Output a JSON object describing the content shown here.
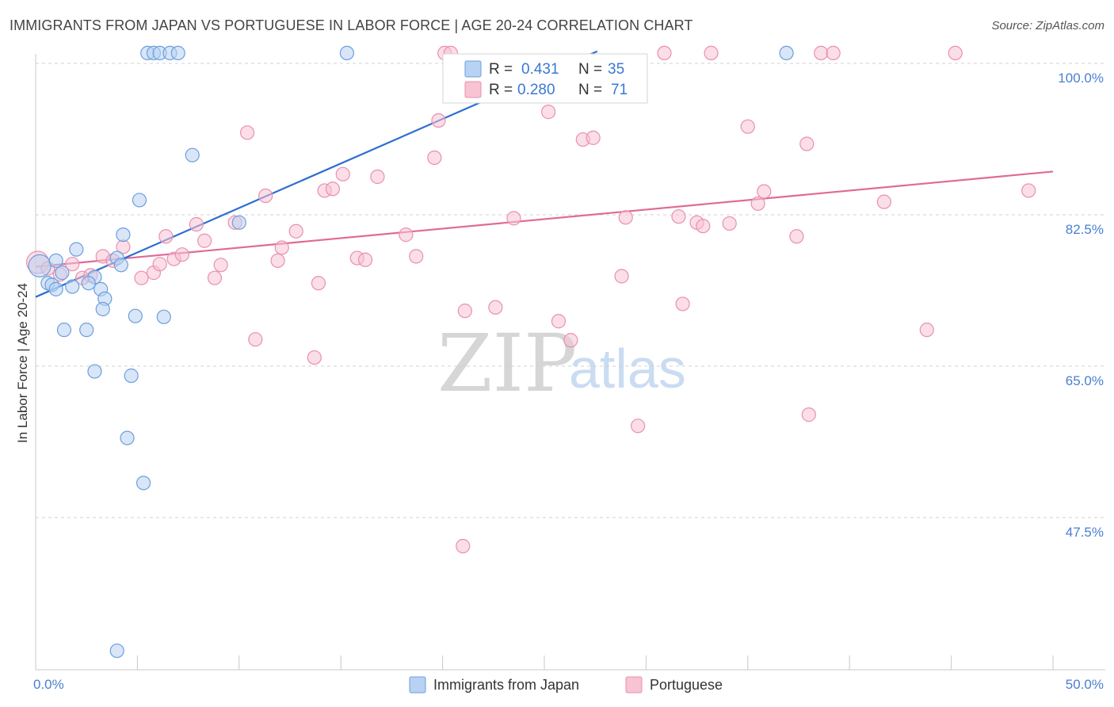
{
  "header": {
    "title": "IMMIGRANTS FROM JAPAN VS PORTUGUESE IN LABOR FORCE | AGE 20-24 CORRELATION CHART",
    "source": "Source: ZipAtlas.com"
  },
  "watermark": {
    "zip": "ZIP",
    "atlas": "atlas"
  },
  "legend": {
    "r_label": "R =",
    "n_label": "N =",
    "japan": {
      "r": "0.431",
      "n": "35"
    },
    "portuguese": {
      "r": "0.280",
      "n": "71"
    }
  },
  "colors": {
    "japan_fill": "#b8d2f3",
    "japan_stroke": "#6c9fdc",
    "japan_line": "#2d6fd0",
    "portuguese_fill": "#f8c3d3",
    "portuguese_stroke": "#e990ad",
    "portuguese_line": "#e06a96",
    "tick_text": "#4a7fd0",
    "grid": "#d0d0d0"
  },
  "chart_data": {
    "type": "scatter",
    "title": "IMMIGRANTS FROM JAPAN VS PORTUGUESE IN LABOR FORCE | AGE 20-24 CORRELATION CHART",
    "xlabel": "",
    "ylabel": "In Labor Force | Age 20-24",
    "xlim": [
      0,
      50
    ],
    "ylim": [
      30,
      102
    ],
    "x_tick_labels": [
      "0.0%",
      "50.0%"
    ],
    "y_ticks": [
      {
        "value": 100.0,
        "label": "100.0%"
      },
      {
        "value": 82.5,
        "label": "82.5%"
      },
      {
        "value": 65.0,
        "label": "65.0%"
      },
      {
        "value": 47.5,
        "label": "47.5%"
      }
    ],
    "legend_position": "top-center",
    "series": [
      {
        "name": "Immigrants from Japan",
        "R": 0.431,
        "N": 35,
        "trend": {
          "x": [
            0,
            27.6
          ],
          "y": [
            73.0,
            101.4
          ]
        },
        "points": [
          {
            "x": 0.2,
            "y": 76.6,
            "big": true
          },
          {
            "x": 0.6,
            "y": 74.6
          },
          {
            "x": 0.8,
            "y": 74.4
          },
          {
            "x": 1.0,
            "y": 73.9
          },
          {
            "x": 1.3,
            "y": 75.8
          },
          {
            "x": 1.4,
            "y": 69.2
          },
          {
            "x": 1.8,
            "y": 74.2
          },
          {
            "x": 2.0,
            "y": 78.5
          },
          {
            "x": 2.5,
            "y": 69.2
          },
          {
            "x": 2.9,
            "y": 75.3
          },
          {
            "x": 2.9,
            "y": 64.4
          },
          {
            "x": 3.2,
            "y": 73.9
          },
          {
            "x": 3.4,
            "y": 72.8
          },
          {
            "x": 3.3,
            "y": 71.6
          },
          {
            "x": 4.0,
            "y": 77.5
          },
          {
            "x": 4.2,
            "y": 76.7
          },
          {
            "x": 4.3,
            "y": 80.2
          },
          {
            "x": 4.5,
            "y": 56.7
          },
          {
            "x": 4.7,
            "y": 63.9
          },
          {
            "x": 4.9,
            "y": 70.8
          },
          {
            "x": 5.1,
            "y": 84.2
          },
          {
            "x": 5.3,
            "y": 51.5
          },
          {
            "x": 5.5,
            "y": 101.2
          },
          {
            "x": 5.8,
            "y": 101.2
          },
          {
            "x": 6.1,
            "y": 101.2
          },
          {
            "x": 6.3,
            "y": 70.7
          },
          {
            "x": 6.6,
            "y": 101.2
          },
          {
            "x": 7.0,
            "y": 101.2
          },
          {
            "x": 7.7,
            "y": 89.4
          },
          {
            "x": 10.0,
            "y": 81.6
          },
          {
            "x": 15.3,
            "y": 101.2
          },
          {
            "x": 36.9,
            "y": 101.2
          },
          {
            "x": 4.0,
            "y": 32.1
          },
          {
            "x": 1.0,
            "y": 77.2
          },
          {
            "x": 2.6,
            "y": 74.6
          }
        ]
      },
      {
        "name": "Portuguese",
        "R": 0.28,
        "N": 71,
        "trend": {
          "x": [
            0,
            50
          ],
          "y": [
            76.5,
            87.5
          ]
        },
        "points": [
          {
            "x": 0.1,
            "y": 77.0,
            "big": true
          },
          {
            "x": 0.6,
            "y": 76.3
          },
          {
            "x": 1.2,
            "y": 75.6
          },
          {
            "x": 1.8,
            "y": 76.8
          },
          {
            "x": 2.3,
            "y": 75.2
          },
          {
            "x": 2.7,
            "y": 75.5
          },
          {
            "x": 3.3,
            "y": 77.7
          },
          {
            "x": 3.8,
            "y": 77.2
          },
          {
            "x": 4.3,
            "y": 78.8
          },
          {
            "x": 5.2,
            "y": 75.2
          },
          {
            "x": 5.8,
            "y": 75.8
          },
          {
            "x": 6.1,
            "y": 76.8
          },
          {
            "x": 6.4,
            "y": 80.0
          },
          {
            "x": 6.8,
            "y": 77.4
          },
          {
            "x": 7.2,
            "y": 77.9
          },
          {
            "x": 7.9,
            "y": 81.4
          },
          {
            "x": 8.3,
            "y": 79.5
          },
          {
            "x": 8.8,
            "y": 75.2
          },
          {
            "x": 9.1,
            "y": 76.7
          },
          {
            "x": 9.8,
            "y": 81.6
          },
          {
            "x": 10.4,
            "y": 92.0
          },
          {
            "x": 10.8,
            "y": 68.1
          },
          {
            "x": 11.3,
            "y": 84.7
          },
          {
            "x": 11.9,
            "y": 77.2
          },
          {
            "x": 12.1,
            "y": 78.7
          },
          {
            "x": 12.8,
            "y": 80.6
          },
          {
            "x": 13.7,
            "y": 66.0
          },
          {
            "x": 13.9,
            "y": 74.6
          },
          {
            "x": 14.2,
            "y": 85.3
          },
          {
            "x": 14.6,
            "y": 85.5
          },
          {
            "x": 15.1,
            "y": 87.2
          },
          {
            "x": 15.8,
            "y": 77.5
          },
          {
            "x": 16.2,
            "y": 77.3
          },
          {
            "x": 16.8,
            "y": 86.9
          },
          {
            "x": 18.2,
            "y": 80.2
          },
          {
            "x": 18.7,
            "y": 77.7
          },
          {
            "x": 19.6,
            "y": 89.1
          },
          {
            "x": 19.8,
            "y": 93.4
          },
          {
            "x": 20.1,
            "y": 101.2
          },
          {
            "x": 21.1,
            "y": 71.4
          },
          {
            "x": 22.6,
            "y": 71.8
          },
          {
            "x": 23.5,
            "y": 82.1
          },
          {
            "x": 25.2,
            "y": 94.4
          },
          {
            "x": 25.7,
            "y": 70.2
          },
          {
            "x": 26.3,
            "y": 68.0
          },
          {
            "x": 26.9,
            "y": 91.2
          },
          {
            "x": 27.4,
            "y": 91.4
          },
          {
            "x": 28.8,
            "y": 75.4
          },
          {
            "x": 29.0,
            "y": 82.2
          },
          {
            "x": 29.6,
            "y": 58.1
          },
          {
            "x": 30.9,
            "y": 101.2
          },
          {
            "x": 31.6,
            "y": 82.3
          },
          {
            "x": 31.8,
            "y": 72.2
          },
          {
            "x": 32.5,
            "y": 81.6
          },
          {
            "x": 32.8,
            "y": 81.2
          },
          {
            "x": 33.2,
            "y": 101.2
          },
          {
            "x": 34.1,
            "y": 81.5
          },
          {
            "x": 35.0,
            "y": 92.7
          },
          {
            "x": 35.5,
            "y": 83.8
          },
          {
            "x": 35.8,
            "y": 85.2
          },
          {
            "x": 37.4,
            "y": 80.0
          },
          {
            "x": 37.9,
            "y": 90.7
          },
          {
            "x": 38.0,
            "y": 59.4
          },
          {
            "x": 38.6,
            "y": 101.2
          },
          {
            "x": 39.2,
            "y": 101.2
          },
          {
            "x": 41.7,
            "y": 84.0
          },
          {
            "x": 43.8,
            "y": 69.2
          },
          {
            "x": 45.2,
            "y": 101.2
          },
          {
            "x": 48.8,
            "y": 85.3
          },
          {
            "x": 21.0,
            "y": 44.2
          },
          {
            "x": 20.4,
            "y": 101.2
          }
        ]
      }
    ],
    "bottom_legend": [
      "Immigrants from Japan",
      "Portuguese"
    ]
  }
}
